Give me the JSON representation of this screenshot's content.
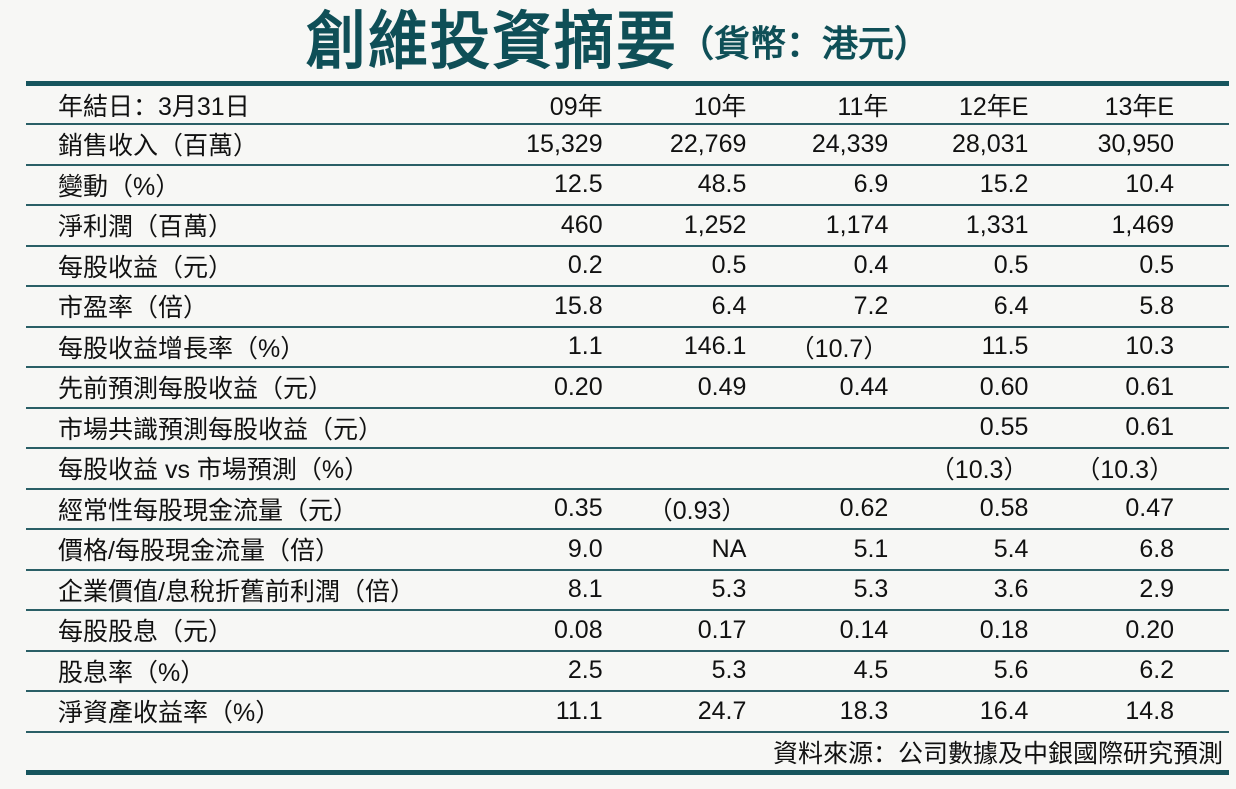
{
  "title": "創維投資摘要",
  "subtitle": "（貨幣：港元）",
  "header": {
    "label": "年結日：3月31日",
    "years": [
      "09年",
      "10年",
      "11年",
      "12年E",
      "13年E"
    ]
  },
  "rows": [
    {
      "label": "銷售收入（百萬）",
      "values": [
        "15,329",
        "22,769",
        "24,339",
        "28,031",
        "30,950"
      ]
    },
    {
      "label": "變動（%）",
      "values": [
        "12.5",
        "48.5",
        "6.9",
        "15.2",
        "10.4"
      ]
    },
    {
      "label": "淨利潤（百萬）",
      "values": [
        "460",
        "1,252",
        "1,174",
        "1,331",
        "1,469"
      ]
    },
    {
      "label": "每股收益（元）",
      "values": [
        "0.2",
        "0.5",
        "0.4",
        "0.5",
        "0.5"
      ]
    },
    {
      "label": "市盈率（倍）",
      "values": [
        "15.8",
        "6.4",
        "7.2",
        "6.4",
        "5.8"
      ]
    },
    {
      "label": "每股收益增長率（%）",
      "values": [
        "1.1",
        "146.1",
        "（10.7）",
        "11.5",
        "10.3"
      ]
    },
    {
      "label": "先前預測每股收益（元）",
      "values": [
        "0.20",
        "0.49",
        "0.44",
        "0.60",
        "0.61"
      ]
    },
    {
      "label": "市場共識預測每股收益（元）",
      "values": [
        "",
        "",
        "",
        "0.55",
        "0.61"
      ]
    },
    {
      "label": "每股收益 vs 市場預測（%）",
      "values": [
        "",
        "",
        "",
        "（10.3）",
        "（10.3）"
      ]
    },
    {
      "label": "經常性每股現金流量（元）",
      "values": [
        "0.35",
        "（0.93）",
        "0.62",
        "0.58",
        "0.47"
      ]
    },
    {
      "label": "價格/每股現金流量（倍）",
      "values": [
        "9.0",
        "NA",
        "5.1",
        "5.4",
        "6.8"
      ]
    },
    {
      "label": "企業價值/息稅折舊前利潤（倍）",
      "values": [
        "8.1",
        "5.3",
        "5.3",
        "3.6",
        "2.9"
      ]
    },
    {
      "label": "每股股息（元）",
      "values": [
        "0.08",
        "0.17",
        "0.14",
        "0.18",
        "0.20"
      ]
    },
    {
      "label": "股息率（%）",
      "values": [
        "2.5",
        "5.3",
        "4.5",
        "5.6",
        "6.2"
      ]
    },
    {
      "label": "淨資產收益率（%）",
      "values": [
        "11.1",
        "24.7",
        "18.3",
        "16.4",
        "14.8"
      ]
    }
  ],
  "source": "資料來源：公司數據及中銀國際研究預測",
  "colors": {
    "title": "#0f4f57",
    "rule": "#17555e"
  }
}
